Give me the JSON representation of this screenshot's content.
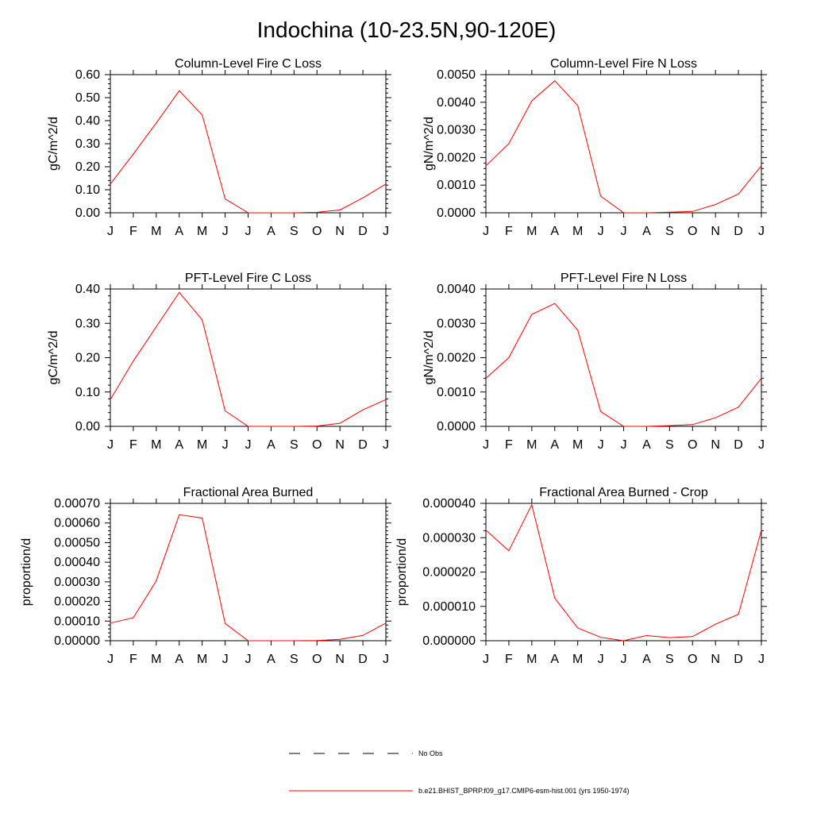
{
  "title": "Indochina (10-23.5N,90-120E)",
  "months": [
    "J",
    "F",
    "M",
    "A",
    "M",
    "J",
    "J",
    "A",
    "S",
    "O",
    "N",
    "D",
    "J"
  ],
  "legend": [
    {
      "label": "No Obs",
      "style": "dashed",
      "color": "#000000"
    },
    {
      "label": "b.e21.BHIST_BPRP.f09_g17.CMIP6-esm-hist.001 (yrs 1950-1974)",
      "style": "solid",
      "color": "#ff0000"
    }
  ],
  "series_color": "#ff0000",
  "chart_data": [
    {
      "type": "line",
      "title": "Column-Level Fire C Loss",
      "ylabel": "gC/m^2/d",
      "ylim": [
        0,
        0.6
      ],
      "yticks": [
        0,
        0.1,
        0.2,
        0.3,
        0.4,
        0.5,
        0.6
      ],
      "ytick_labels": [
        "0.00",
        "0.10",
        "0.20",
        "0.30",
        "0.40",
        "0.50",
        "0.60"
      ],
      "values": [
        0.125,
        0.255,
        0.39,
        0.53,
        0.425,
        0.06,
        0.0,
        0.0,
        0.0,
        0.002,
        0.012,
        0.065,
        0.125
      ]
    },
    {
      "type": "line",
      "title": "Column-Level Fire N Loss",
      "ylabel": "gN/m^2/d",
      "ylim": [
        0,
        0.005
      ],
      "yticks": [
        0,
        0.001,
        0.002,
        0.003,
        0.004,
        0.005
      ],
      "ytick_labels": [
        "0.0000",
        "0.0010",
        "0.0020",
        "0.0030",
        "0.0040",
        "0.0050"
      ],
      "values": [
        0.0017,
        0.0025,
        0.00405,
        0.00478,
        0.00388,
        0.0006,
        0.0,
        0.0,
        2e-05,
        5e-05,
        0.0003,
        0.00068,
        0.0017
      ]
    },
    {
      "type": "line",
      "title": "PFT-Level Fire C Loss",
      "ylabel": "gC/m^2/d",
      "ylim": [
        0,
        0.4
      ],
      "yticks": [
        0,
        0.1,
        0.2,
        0.3,
        0.4
      ],
      "ytick_labels": [
        "0.00",
        "0.10",
        "0.20",
        "0.30",
        "0.40"
      ],
      "values": [
        0.078,
        0.19,
        0.29,
        0.39,
        0.31,
        0.045,
        0.0,
        0.0,
        0.0,
        0.001,
        0.009,
        0.048,
        0.078
      ]
    },
    {
      "type": "line",
      "title": "PFT-Level Fire N Loss",
      "ylabel": "gN/m^2/d",
      "ylim": [
        0,
        0.004
      ],
      "yticks": [
        0,
        0.001,
        0.002,
        0.003,
        0.004
      ],
      "ytick_labels": [
        "0.0000",
        "0.0010",
        "0.0020",
        "0.0030",
        "0.0040"
      ],
      "values": [
        0.0014,
        0.002,
        0.00326,
        0.00358,
        0.0028,
        0.00043,
        0.0,
        0.0,
        2e-05,
        5e-05,
        0.00025,
        0.00056,
        0.0014
      ]
    },
    {
      "type": "line",
      "title": "Fractional Area Burned",
      "ylabel": "proportion/d",
      "ylim": [
        0,
        0.0007
      ],
      "yticks": [
        0,
        0.0001,
        0.0002,
        0.0003,
        0.0004,
        0.0005,
        0.0006,
        0.0007
      ],
      "ytick_labels": [
        "0.00000",
        "0.00010",
        "0.00020",
        "0.00030",
        "0.00040",
        "0.00050",
        "0.00060",
        "0.00070"
      ],
      "values": [
        9e-05,
        0.000117,
        0.000305,
        0.000642,
        0.000625,
        8.8e-05,
        0.0,
        0.0,
        0.0,
        1e-06,
        7e-06,
        2.7e-05,
        9e-05
      ]
    },
    {
      "type": "line",
      "title": "Fractional Area Burned - Crop",
      "ylabel": "proportion/d",
      "ylim": [
        0,
        4e-05
      ],
      "yticks": [
        0,
        1e-05,
        2e-05,
        3e-05,
        4e-05
      ],
      "ytick_labels": [
        "0.000000",
        "0.000010",
        "0.000020",
        "0.000030",
        "0.000040"
      ],
      "values": [
        3.22e-05,
        2.62e-05,
        3.96e-05,
        1.24e-05,
        3.7e-06,
        1e-06,
        0.0,
        1.5e-06,
        9e-07,
        1.2e-06,
        4.8e-06,
        7.7e-06,
        3.22e-05
      ]
    }
  ]
}
